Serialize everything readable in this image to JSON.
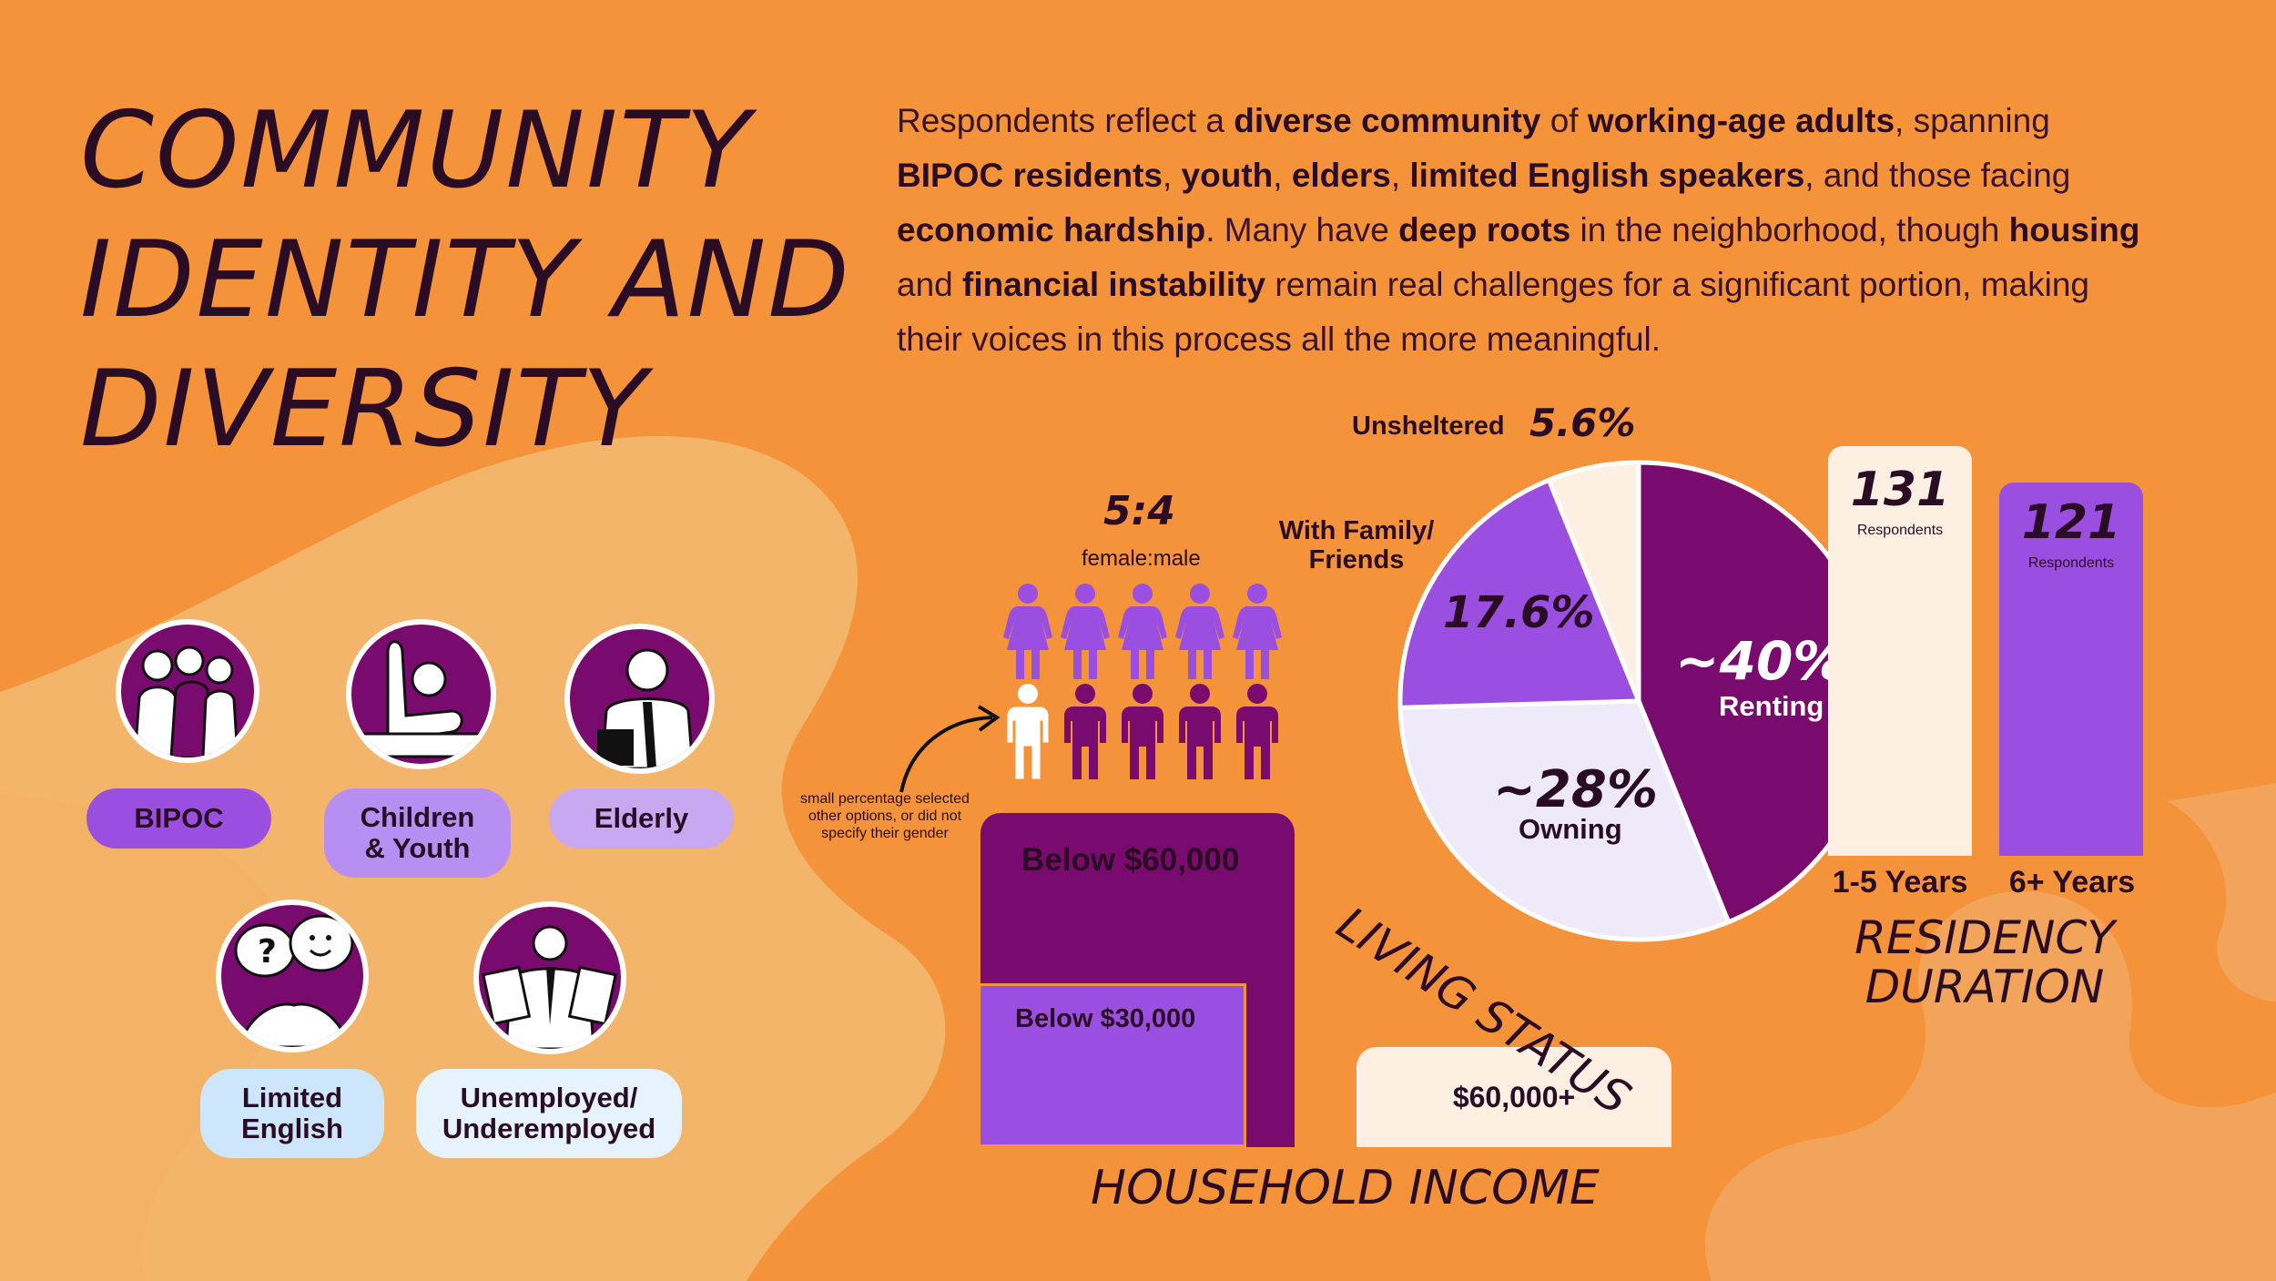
{
  "title": "COMMUNITY\nIDENTITY AND\nDIVERSITY",
  "intro": [
    {
      "t": "Respondents reflect a ",
      "b": false
    },
    {
      "t": "diverse community",
      "b": true
    },
    {
      "t": " of ",
      "b": false
    },
    {
      "t": "working-age adults",
      "b": true
    },
    {
      "t": ", spanning ",
      "b": false
    },
    {
      "t": "BIPOC residents",
      "b": true
    },
    {
      "t": ", ",
      "b": false
    },
    {
      "t": "youth",
      "b": true
    },
    {
      "t": ", ",
      "b": false
    },
    {
      "t": "elders",
      "b": true
    },
    {
      "t": ", ",
      "b": false
    },
    {
      "t": "limited English speakers",
      "b": true
    },
    {
      "t": ", and those facing ",
      "b": false
    },
    {
      "t": "economic hardship",
      "b": true
    },
    {
      "t": ". Many have ",
      "b": false
    },
    {
      "t": "deep roots",
      "b": true
    },
    {
      "t": " in the neighborhood, though ",
      "b": false
    },
    {
      "t": "housing",
      "b": true
    },
    {
      "t": " and ",
      "b": false
    },
    {
      "t": "financial instability",
      "b": true
    },
    {
      "t": " remain real challenges for a significant portion, making their voices in this process all the more meaningful.",
      "b": false
    }
  ],
  "groups": {
    "bipoc": "BIPOC",
    "children_youth": "Children\n& Youth",
    "elderly": "Elderly",
    "limited_english": "Limited\nEnglish",
    "unemployed": "Unemployed/\nUnderemployed"
  },
  "gender": {
    "ratio": "5:4",
    "ratio_label": "female:male",
    "female_count": 5,
    "male_count": 4,
    "other_count": 1,
    "note": "small percentage selected\nother options, or did not\nspecify their gender"
  },
  "income": {
    "title": "HOUSEHOLD INCOME",
    "below_60k": "Below $60,000",
    "below_30k": "Below $30,000",
    "above_60k": "$60,000+"
  },
  "living": {
    "title": "LIVING STATUS",
    "unsheltered_label": "Unsheltered",
    "unsheltered_value": "5.6%",
    "family_label": "With Family/\nFriends",
    "family_value": "17.6%",
    "renting_value": "~40%",
    "renting_label": "Renting",
    "owning_value": "~28%",
    "owning_label": "Owning"
  },
  "residency": {
    "title": "RESIDENCY\nDURATION",
    "bars": [
      {
        "value": "131",
        "unit": "Respondents",
        "label": "1-5 Years"
      },
      {
        "value": "121",
        "unit": "Respondents",
        "label": "6+ Years"
      }
    ]
  },
  "colors": {
    "background": "#f5933a",
    "blob": "#f2b56a",
    "dark_purple": "#7a0b6e",
    "mid_purple": "#9a4fe0",
    "light_purple": "#b98ef2",
    "lavender": "#eeeaf9",
    "cream": "#fdf0e3",
    "light_blue": "#cde6fb",
    "ink": "#2a0d24"
  }
}
